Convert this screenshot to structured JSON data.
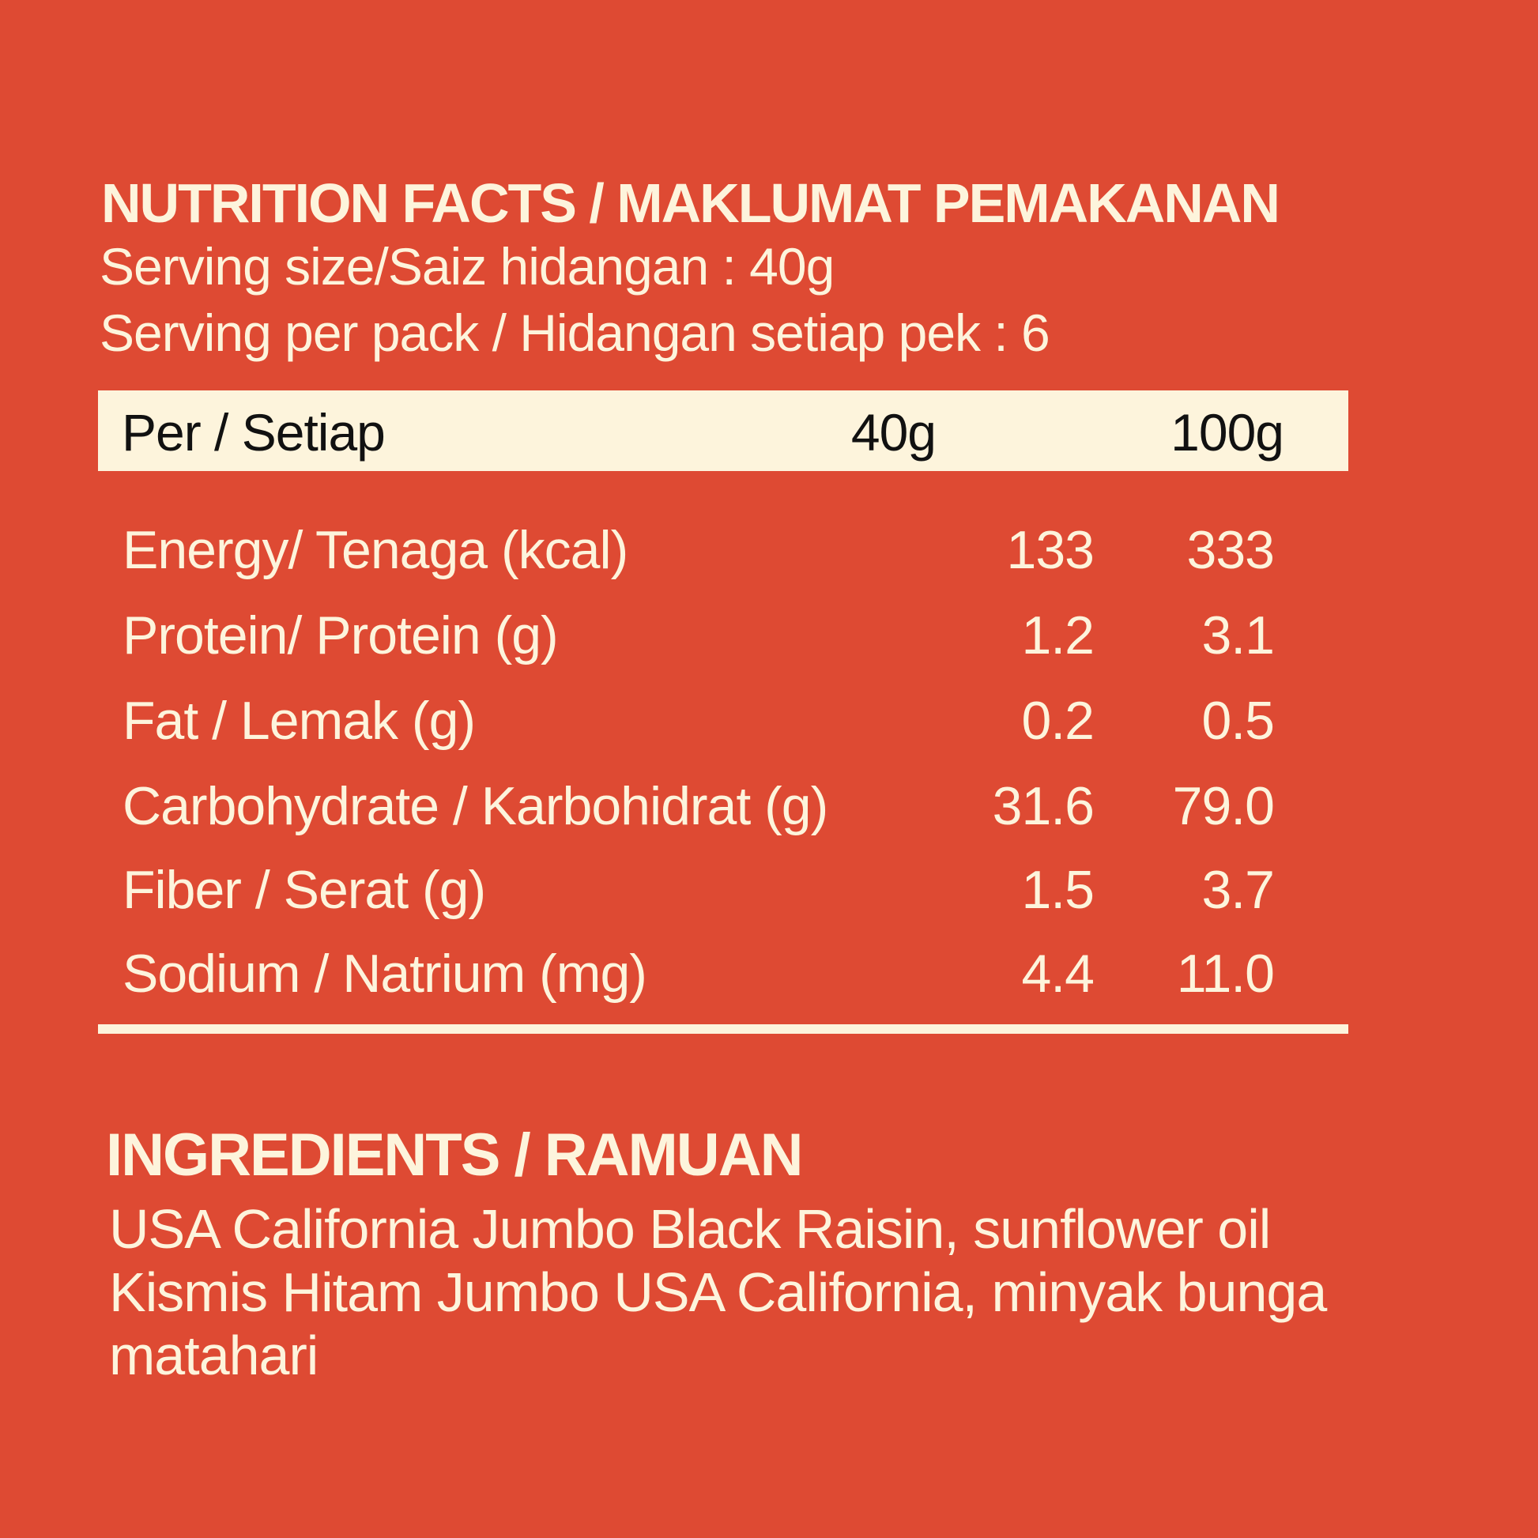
{
  "colors": {
    "background": "#de4a33",
    "text_cream": "#fdf4dc",
    "band_fill": "#fdf4dc",
    "band_text": "#111111"
  },
  "nutrition": {
    "title": "NUTRITION FACTS / MAKLUMAT PEMAKANAN",
    "serving_size": "Serving size/Saiz hidangan : 40g",
    "servings_per_pack": "Serving per pack / Hidangan setiap pek : 6",
    "header": {
      "label": "Per / Setiap",
      "col1": "40g",
      "col2": "100g"
    },
    "rows": [
      {
        "label": "Energy/ Tenaga (kcal)",
        "per_serving": "133",
        "per_100g": "333"
      },
      {
        "label": "Protein/ Protein (g)",
        "per_serving": "1.2",
        "per_100g": "3.1"
      },
      {
        "label": "Fat / Lemak (g)",
        "per_serving": "0.2",
        "per_100g": "0.5"
      },
      {
        "label": "Carbohydrate / Karbohidrat (g)",
        "per_serving": "31.6",
        "per_100g": "79.0"
      },
      {
        "label": "Fiber / Serat (g)",
        "per_serving": "1.5",
        "per_100g": "3.7"
      },
      {
        "label": "Sodium / Natrium (mg)",
        "per_serving": "4.4",
        "per_100g": "11.0"
      }
    ]
  },
  "ingredients": {
    "title": "INGREDIENTS / RAMUAN",
    "line1": "USA California Jumbo Black Raisin, sunflower oil",
    "line2": "Kismis Hitam Jumbo USA California, minyak bunga",
    "line3": "matahari"
  }
}
